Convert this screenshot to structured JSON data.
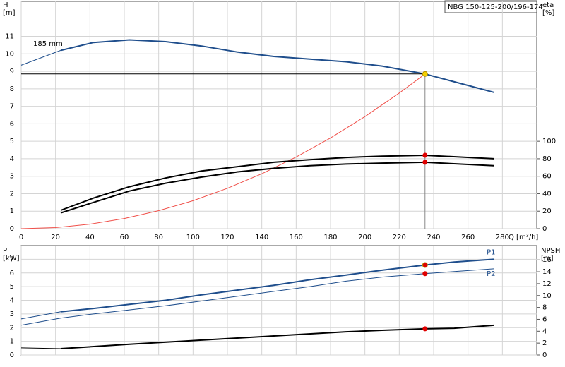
{
  "chart_data": [
    {
      "type": "line",
      "title": "NBG 150-125-200/196-174",
      "ylabel": "H",
      "yunit": "[m]",
      "y2label": "eta",
      "y2unit": "[%]",
      "xlabel": "Q [m³/h]",
      "annotation": "185 mm",
      "grid": true,
      "xlim": [
        0,
        300
      ],
      "xticks": [
        0,
        20,
        40,
        60,
        80,
        100,
        120,
        140,
        160,
        180,
        200,
        220,
        240,
        260,
        280
      ],
      "ylim": [
        0,
        13
      ],
      "yticks": [
        0,
        1,
        2,
        3,
        4,
        5,
        6,
        7,
        8,
        9,
        10,
        11
      ],
      "y2lim": [
        0,
        260
      ],
      "y2ticks": [
        0,
        20,
        40,
        60,
        80,
        100
      ],
      "series": [
        {
          "color": "#1f4e8c",
          "width": 1,
          "axis": "y",
          "x": [
            0,
            23
          ],
          "values": [
            9.35,
            10.2
          ]
        },
        {
          "color": "#1f4e8c",
          "width": 2,
          "axis": "y",
          "x": [
            23,
            42,
            63,
            84,
            105,
            126,
            147,
            168,
            189,
            210,
            235,
            252,
            275
          ],
          "values": [
            10.2,
            10.65,
            10.8,
            10.7,
            10.45,
            10.1,
            9.85,
            9.7,
            9.55,
            9.3,
            8.85,
            8.4,
            7.8
          ]
        },
        {
          "color": "#f0504a",
          "width": 1,
          "axis": "y",
          "x": [
            0,
            20,
            40,
            60,
            80,
            100,
            120,
            140,
            160,
            180,
            200,
            220,
            235
          ],
          "values": [
            0,
            0.06,
            0.26,
            0.58,
            1.03,
            1.6,
            2.31,
            3.14,
            4.1,
            5.19,
            6.41,
            7.76,
            8.85
          ]
        },
        {
          "color": "#000000",
          "width": 1,
          "axis": "y",
          "x": [
            0,
            235
          ],
          "values": [
            8.85,
            8.85
          ]
        },
        {
          "color": "#888888",
          "width": 1,
          "axis": "y",
          "x": [
            235,
            235
          ],
          "values": [
            8.85,
            0
          ]
        },
        {
          "color": "#000000",
          "width": 2,
          "axis": "y2",
          "x": [
            23,
            42,
            63,
            84,
            105,
            126,
            147,
            168,
            189,
            210,
            235,
            275
          ],
          "values": [
            21,
            35,
            48,
            58,
            66,
            71,
            76,
            79,
            81.5,
            83,
            84,
            80
          ]
        },
        {
          "color": "#000000",
          "width": 2,
          "axis": "y2",
          "x": [
            23,
            42,
            63,
            84,
            105,
            126,
            147,
            168,
            189,
            210,
            235,
            275
          ],
          "values": [
            18,
            30,
            43,
            52,
            59,
            65,
            69,
            72,
            74,
            75,
            76,
            72
          ]
        }
      ],
      "points": [
        {
          "x": 235,
          "y": 8.85,
          "axis": "y",
          "color": "#f5d000"
        },
        {
          "x": 235,
          "y": 84,
          "axis": "y2",
          "color": "#e00000"
        },
        {
          "x": 235,
          "y": 76,
          "axis": "y2",
          "color": "#e00000"
        }
      ]
    },
    {
      "type": "line",
      "ylabel": "P",
      "yunit": "[kW]",
      "y2label": "NPSH",
      "y2unit": "[m]",
      "grid": true,
      "xlim": [
        0,
        300
      ],
      "xticks": [
        0,
        20,
        40,
        60,
        80,
        100,
        120,
        140,
        160,
        180,
        200,
        220,
        240,
        260,
        280
      ],
      "ylim": [
        0,
        8
      ],
      "yticks": [
        0,
        1,
        2,
        3,
        4,
        5,
        6,
        7
      ],
      "y2lim": [
        0,
        18.4
      ],
      "y2ticks": [
        0,
        2,
        4,
        6,
        8,
        10,
        12,
        14,
        16
      ],
      "series": [
        {
          "color": "#1f4e8c",
          "width": 1,
          "axis": "y",
          "x": [
            0,
            23
          ],
          "values": [
            2.64,
            3.16
          ]
        },
        {
          "name": "P1",
          "color": "#1f4e8c",
          "width": 2,
          "axis": "y",
          "x": [
            23,
            42,
            63,
            84,
            105,
            126,
            147,
            168,
            189,
            210,
            235,
            252,
            275
          ],
          "values": [
            3.16,
            3.4,
            3.7,
            4.0,
            4.4,
            4.75,
            5.1,
            5.5,
            5.85,
            6.2,
            6.58,
            6.8,
            7.0
          ]
        },
        {
          "name": "P2",
          "color": "#1f4e8c",
          "width": 1,
          "axis": "y",
          "x": [
            0,
            23,
            42,
            63,
            84,
            105,
            126,
            147,
            168,
            189,
            210,
            235,
            252,
            275
          ],
          "values": [
            2.18,
            2.7,
            3.0,
            3.3,
            3.6,
            3.95,
            4.3,
            4.65,
            5.0,
            5.4,
            5.7,
            5.95,
            6.1,
            6.3
          ]
        },
        {
          "color": "#000000",
          "width": 1,
          "axis": "y2",
          "x": [
            0,
            23
          ],
          "values": [
            1.2,
            1.07
          ]
        },
        {
          "color": "#000000",
          "width": 2,
          "axis": "y2",
          "x": [
            23,
            63,
            105,
            147,
            189,
            210,
            235,
            252,
            275
          ],
          "values": [
            1.07,
            1.8,
            2.5,
            3.2,
            3.9,
            4.15,
            4.4,
            4.5,
            5.0
          ]
        }
      ],
      "points": [
        {
          "x": 235,
          "y": 6.58,
          "axis": "y",
          "color": "#e00000"
        },
        {
          "x": 235,
          "y": 5.95,
          "axis": "y",
          "color": "#e00000"
        },
        {
          "x": 235,
          "y": 4.4,
          "axis": "y2",
          "color": "#e00000"
        }
      ]
    }
  ]
}
